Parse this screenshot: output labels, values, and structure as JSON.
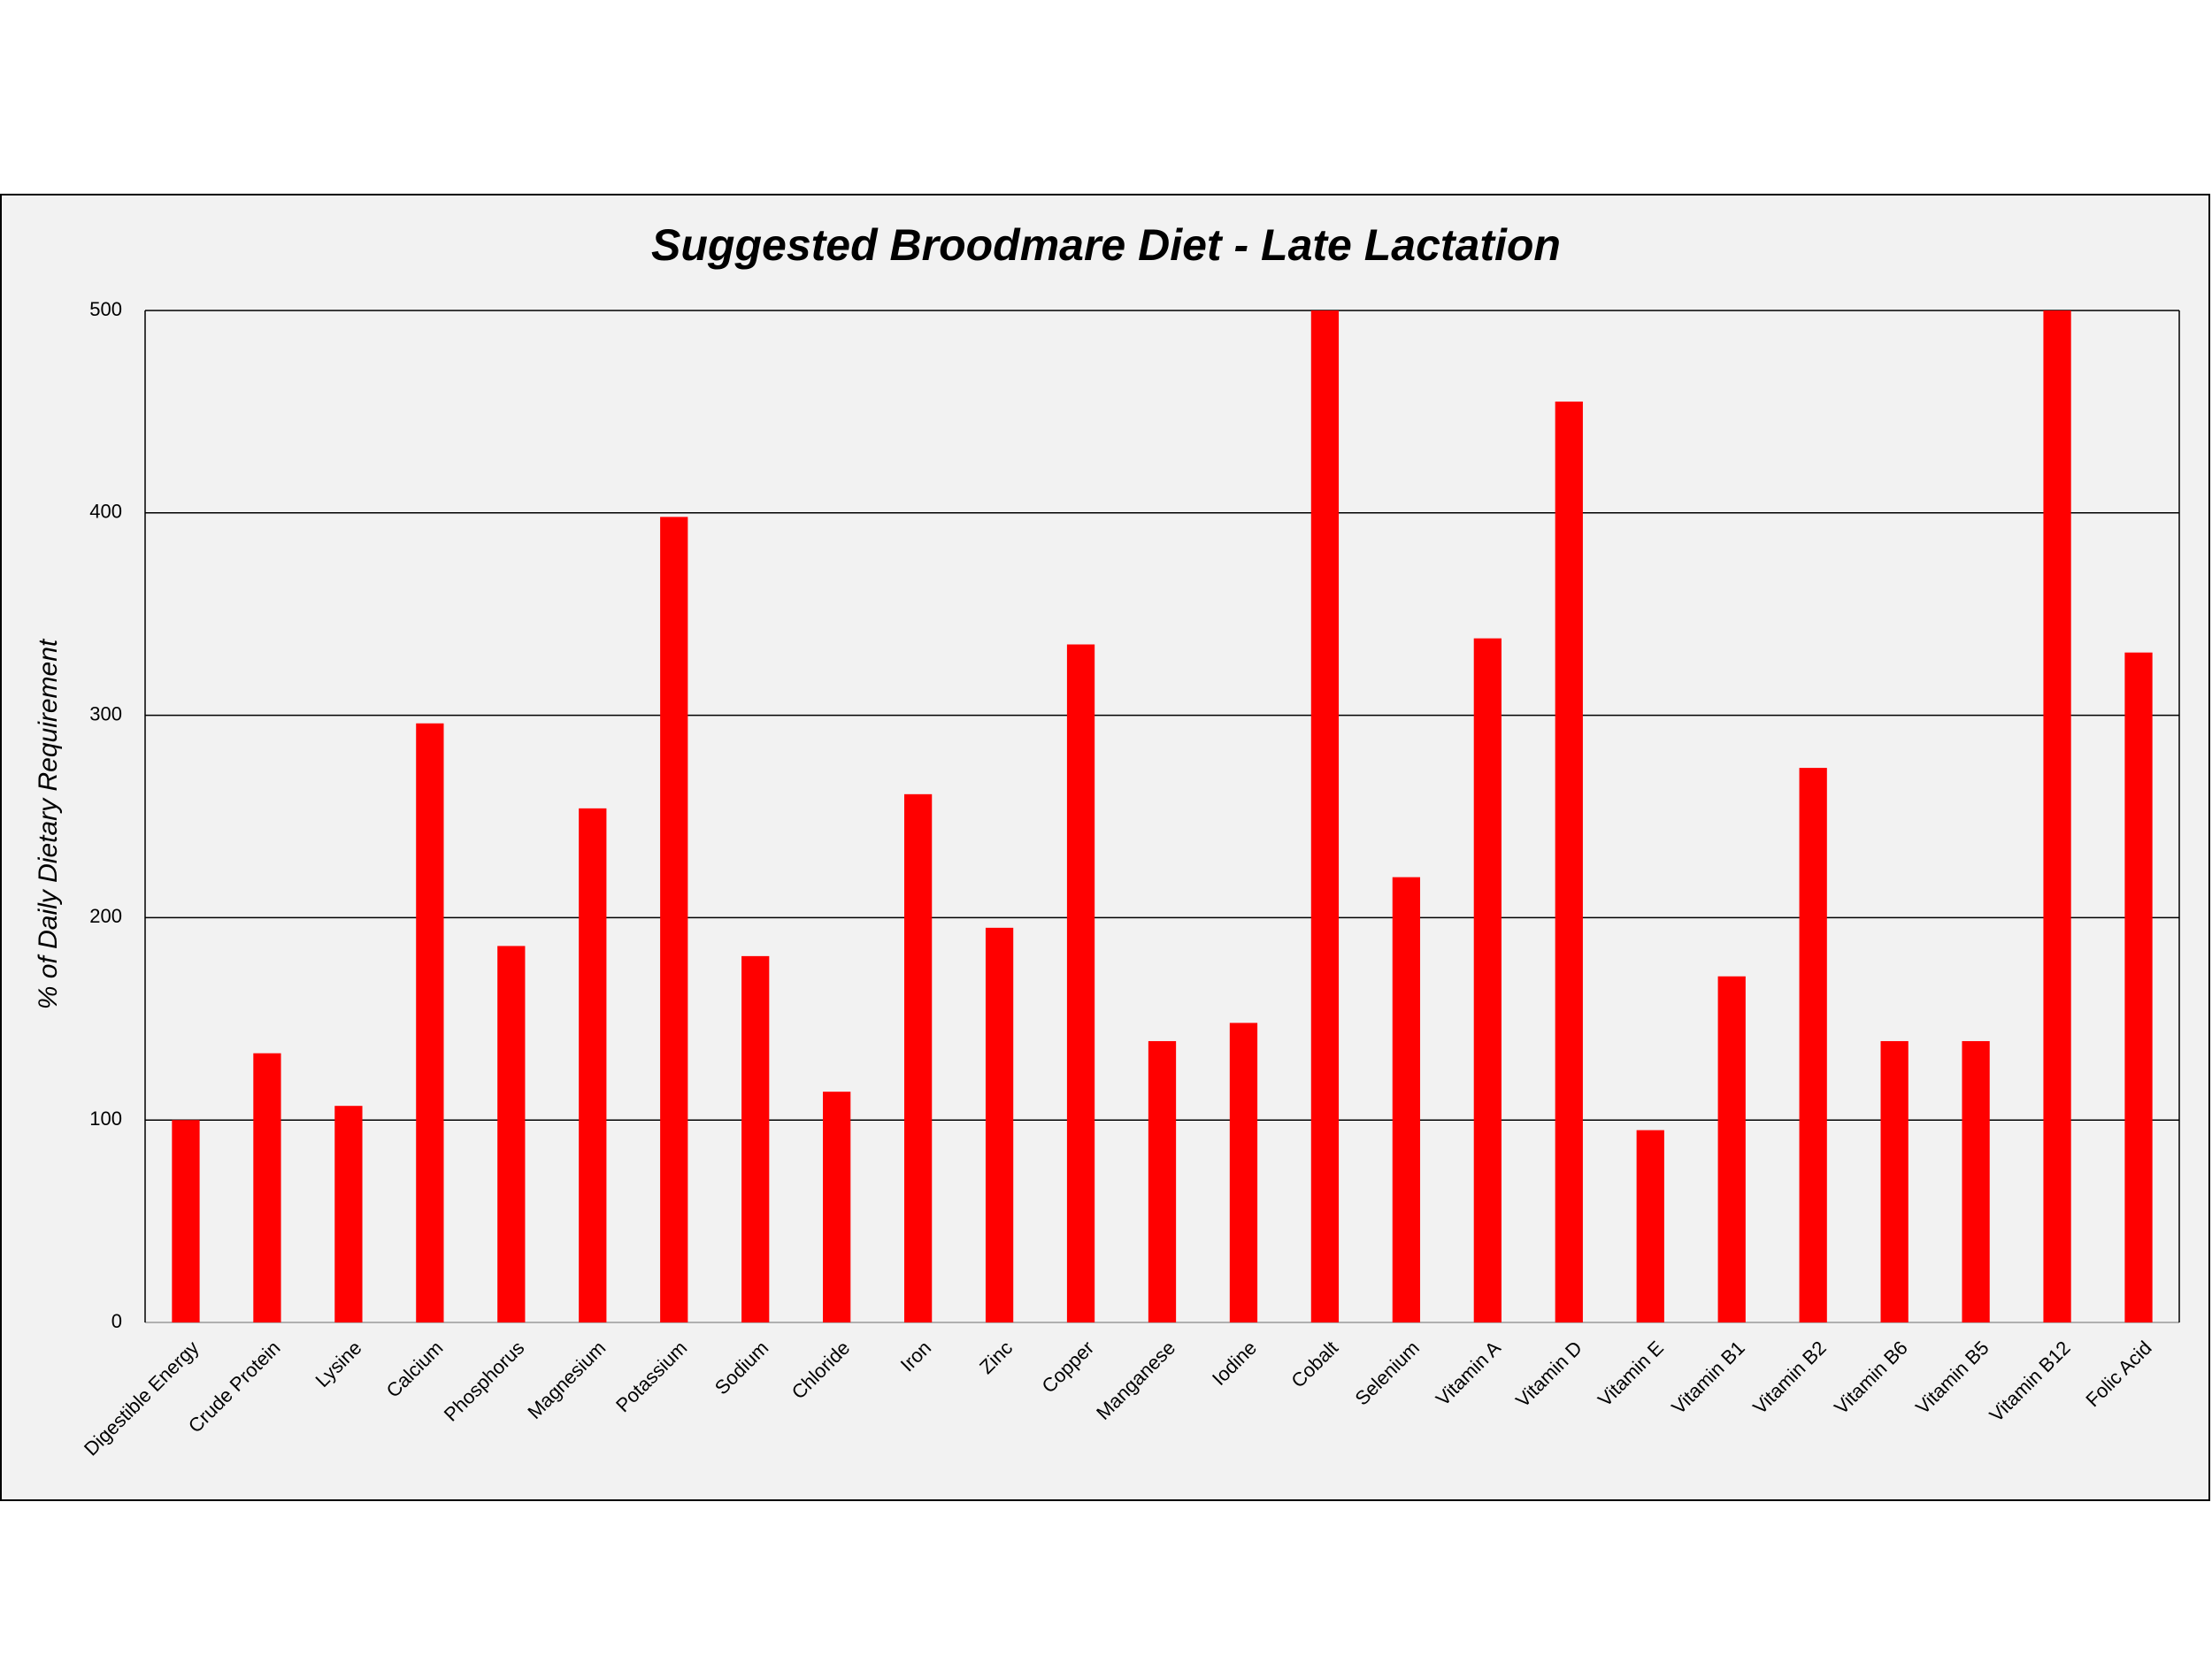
{
  "chart_data": {
    "type": "bar",
    "title": "Suggested Broodmare Diet - Late Lactation",
    "y_label": "% of Daily Dietary Requirement",
    "categories": [
      "Digestible Energy",
      "Crude Protein",
      "Lysine",
      "Calcium",
      "Phosphorus",
      "Magnesium",
      "Potassium",
      "Sodium",
      "Chloride",
      "Iron",
      "Zinc",
      "Copper",
      "Manganese",
      "Iodine",
      "Cobalt",
      "Selenium",
      "Vitamin A",
      "Vitamin D",
      "Vitamin E",
      "Vitamin B1",
      "Vitamin B2",
      "Vitamin B6",
      "Vitamin B5",
      "Vitamin B12",
      "Folic Acid"
    ],
    "values": [
      100,
      133,
      107,
      296,
      186,
      254,
      398,
      181,
      114,
      261,
      195,
      335,
      139,
      148,
      500,
      220,
      338,
      455,
      95,
      171,
      274,
      139,
      139,
      500,
      331
    ],
    "color": "#ff0000",
    "ylim": [
      0,
      500
    ],
    "yticks": [
      0,
      100,
      200,
      300,
      400,
      500
    ],
    "grid": true
  }
}
